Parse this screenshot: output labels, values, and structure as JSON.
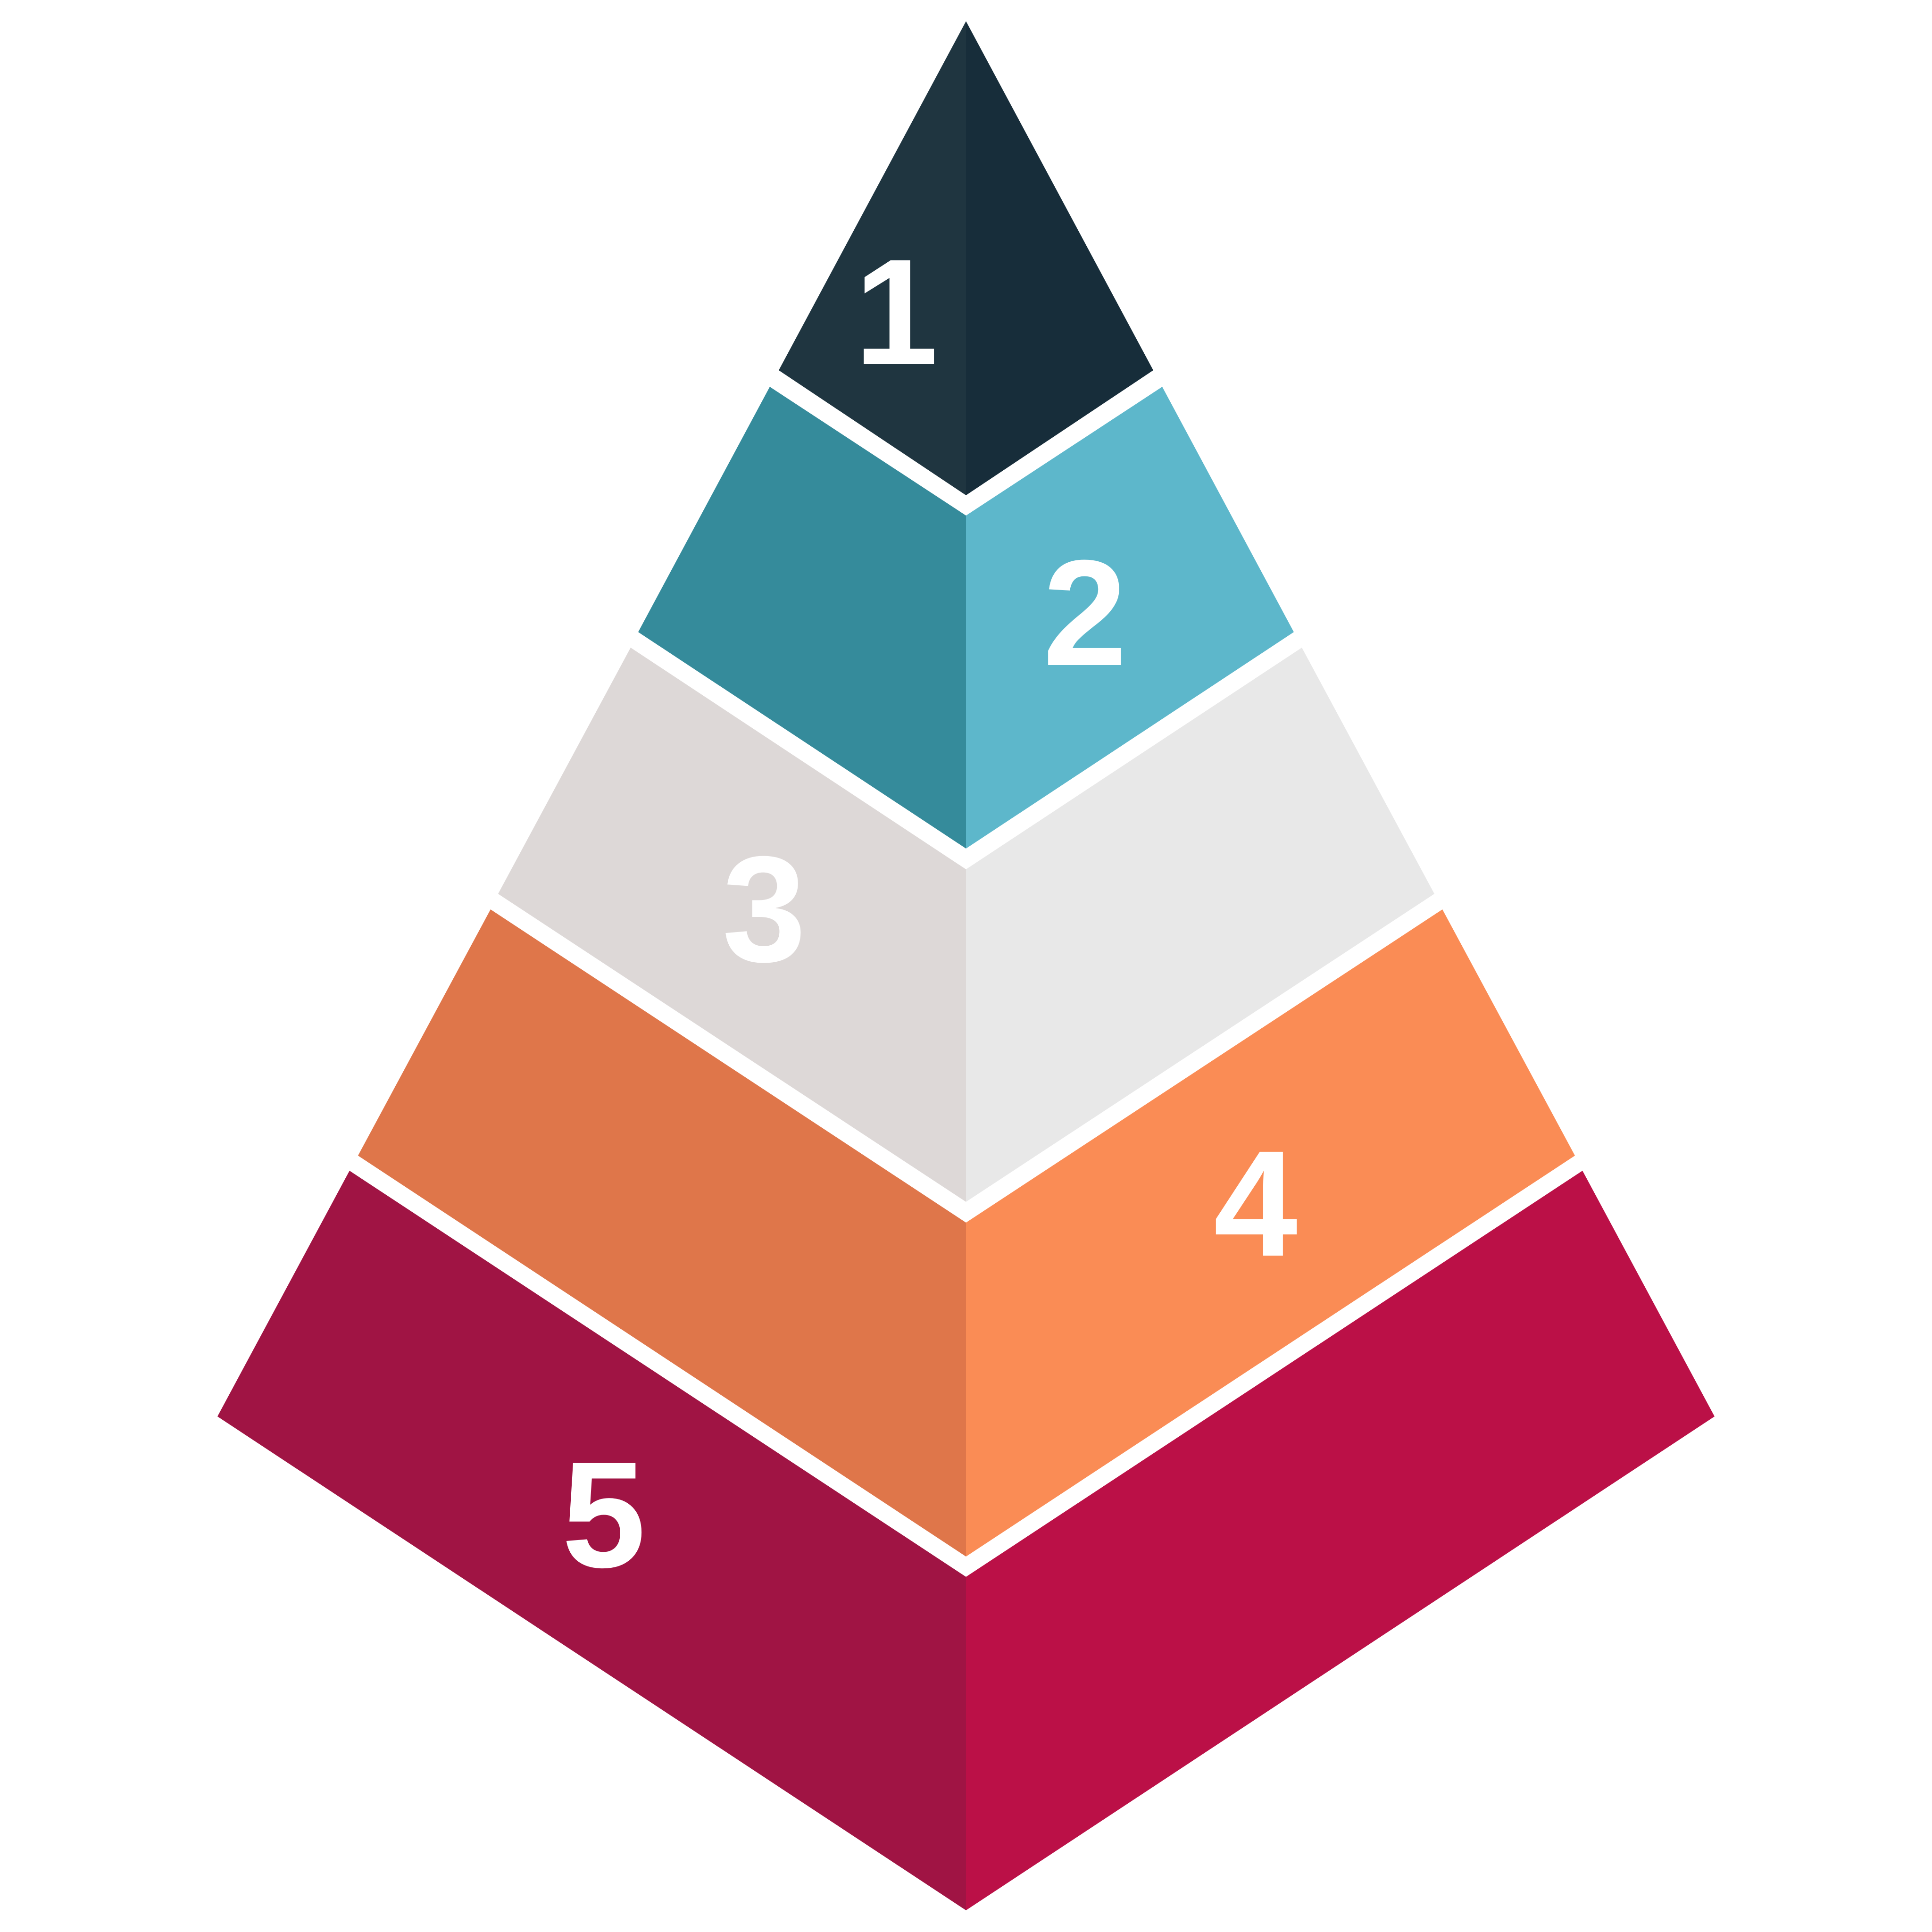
{
  "diagram": {
    "levels": [
      {
        "label": "1",
        "colors": {
          "left": "#1f3540",
          "right": "#172d3a"
        }
      },
      {
        "label": "2",
        "colors": {
          "left": "#358b9b",
          "right": "#5db7cb"
        }
      },
      {
        "label": "3",
        "colors": {
          "left": "#ddd8d7",
          "right": "#e8e8e8"
        }
      },
      {
        "label": "4",
        "colors": {
          "left": "#df764a",
          "right": "#fa8c55"
        }
      },
      {
        "label": "5",
        "colors": {
          "left": "#a01444",
          "right": "#bb1047"
        }
      }
    ]
  }
}
